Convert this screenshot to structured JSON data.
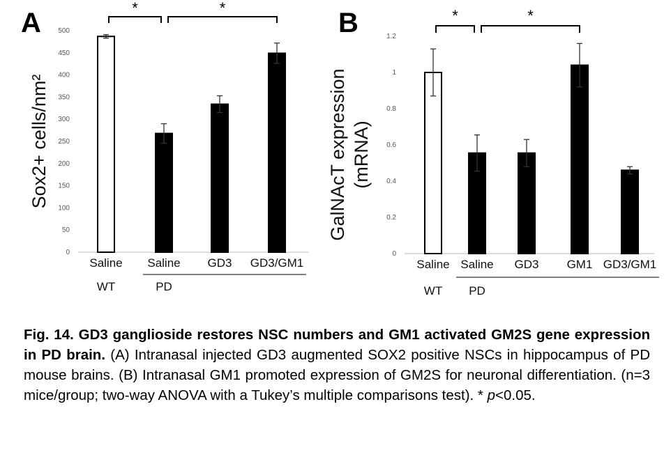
{
  "chart_data": [
    {
      "type": "bar",
      "panel_label": "A",
      "ylabel": "Sox2+ cells/nm²",
      "ylim": [
        0,
        500
      ],
      "yticks": [
        0,
        50,
        100,
        150,
        200,
        250,
        300,
        350,
        400,
        450,
        500
      ],
      "categories": [
        "Saline",
        "Saline",
        "GD3",
        "GD3/GM1"
      ],
      "values": [
        487,
        268,
        334,
        449
      ],
      "errors": [
        4,
        22,
        19,
        23
      ],
      "bar_fill": [
        "#ffffff",
        "#000000",
        "#000000",
        "#000000"
      ],
      "groups": [
        {
          "label": "WT",
          "from": 0,
          "to": 0,
          "underline": false
        },
        {
          "label": "PD",
          "from": 1,
          "to": 3,
          "underline": true
        }
      ],
      "significance": [
        {
          "from": 0,
          "to": 1,
          "label": "*"
        },
        {
          "from": 1,
          "to": 3,
          "label": "*"
        }
      ]
    },
    {
      "type": "bar",
      "panel_label": "B",
      "ylabel": "GalNAcT expression (mRNA)",
      "ylabel_lines": [
        "GalNAcT expression",
        "(mRNA)"
      ],
      "ylim": [
        0,
        1.2
      ],
      "yticks": [
        0,
        0.2,
        0.4,
        0.6,
        0.8,
        1,
        1.2
      ],
      "categories": [
        "Saline",
        "Saline",
        "GD3",
        "GM1",
        "GD3/GM1"
      ],
      "values": [
        1.0,
        0.555,
        0.555,
        1.04,
        0.46
      ],
      "errors": [
        0.13,
        0.1,
        0.075,
        0.12,
        0.02
      ],
      "bar_fill": [
        "#ffffff",
        "#000000",
        "#000000",
        "#000000",
        "#000000"
      ],
      "groups": [
        {
          "label": "WT",
          "from": 0,
          "to": 0,
          "underline": false
        },
        {
          "label": "PD",
          "from": 1,
          "to": 4,
          "underline": true
        }
      ],
      "significance": [
        {
          "from": 0,
          "to": 1,
          "label": "*"
        },
        {
          "from": 1,
          "to": 3,
          "label": "*"
        }
      ]
    }
  ],
  "caption": {
    "bold": "Fig. 14. GD3 ganglioside restores NSC numbers and GM1 activated GM2S gene expression in PD brain.",
    "text_a": " (A) Intranasal   injected   GD3 augmented SOX2 positive NSCs in hippocampus of PD mouse brains. (B) Intranasal GM1 promoted expression of GM2S for neuronal differentiation. (n=3 mice/group; two-way ANOVA with a Tukey’s multiple comparisons test).   * ",
    "p_symbol": "p",
    "text_b": "<0.05."
  }
}
